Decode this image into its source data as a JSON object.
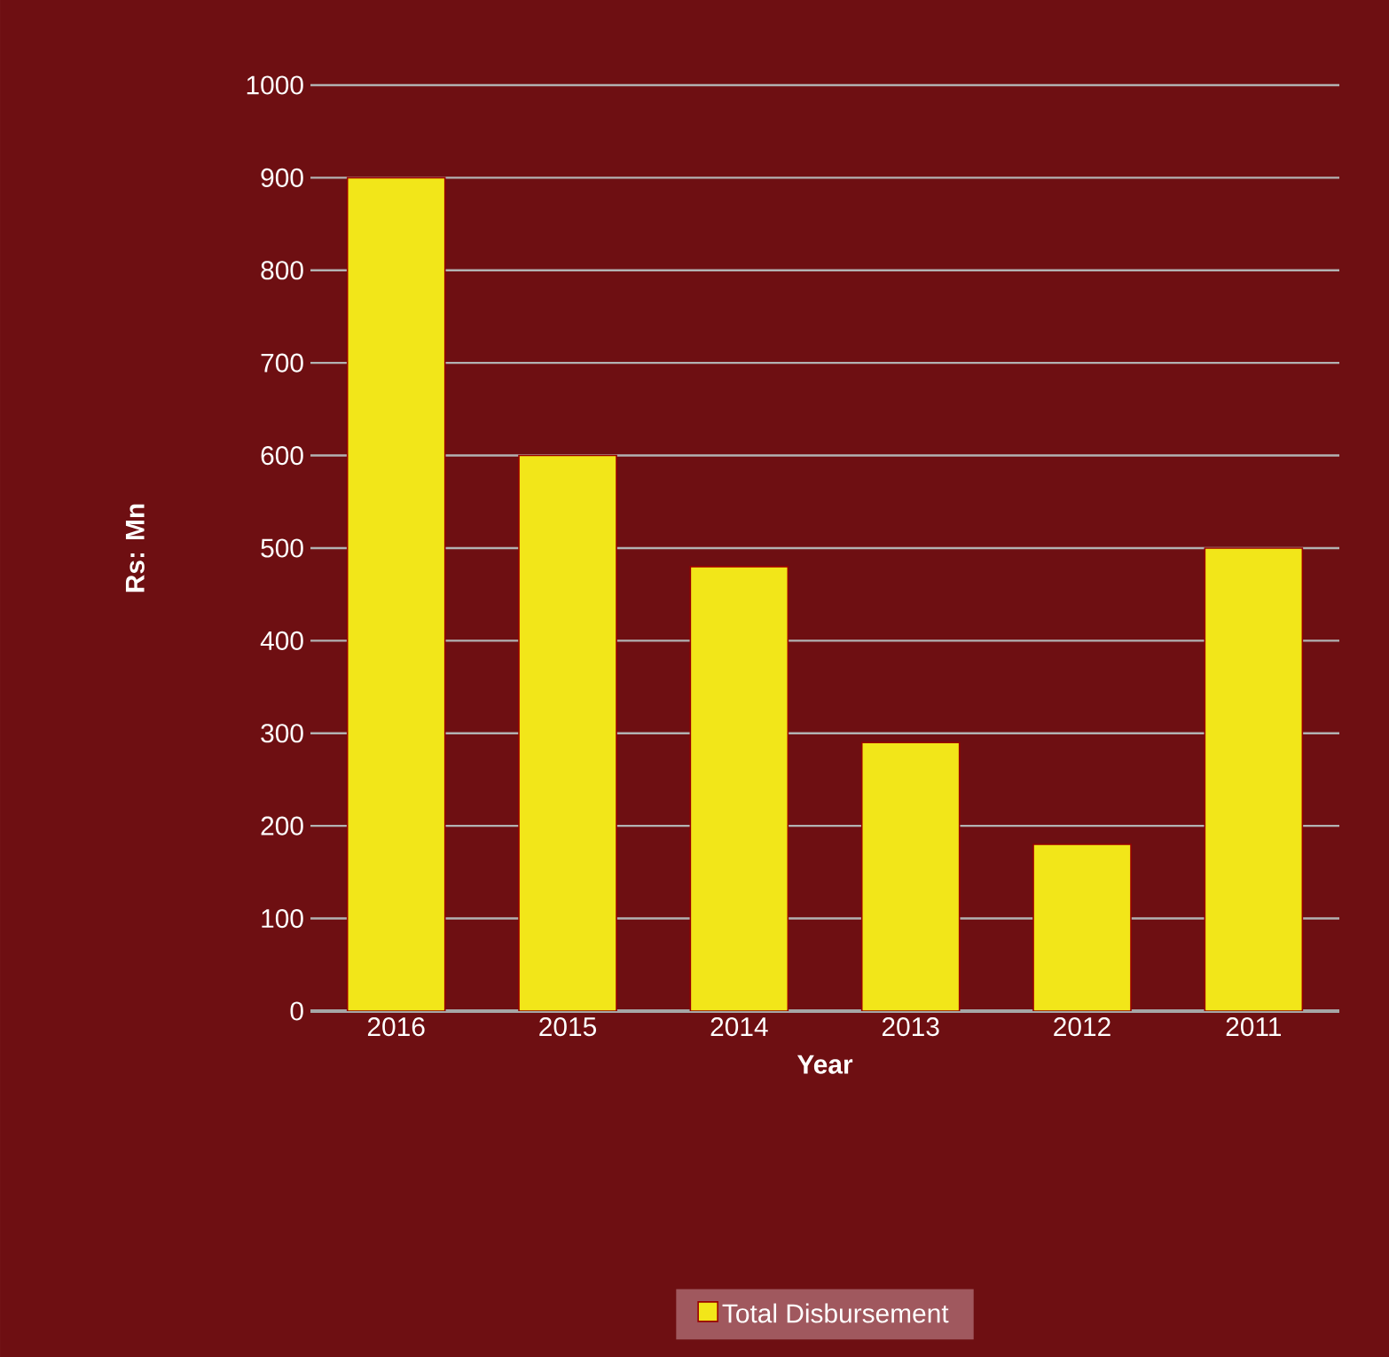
{
  "chart_data": {
    "type": "bar",
    "xlabel": "Year",
    "ylabel": "Rs: Mn",
    "categories": [
      "2016",
      "2015",
      "2014",
      "2013",
      "2012",
      "2011"
    ],
    "series": [
      {
        "name": "Total Disbursement",
        "color": "#f2e619",
        "values": [
          900,
          600,
          480,
          290,
          180,
          500
        ]
      }
    ],
    "ylim": [
      0,
      1000
    ],
    "yticks": [
      0,
      100,
      200,
      300,
      400,
      500,
      600,
      700,
      800,
      900,
      1000
    ],
    "grid": "y",
    "legend": "bottom"
  }
}
